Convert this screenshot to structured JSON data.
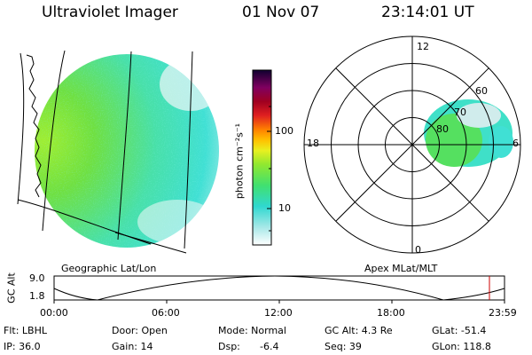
{
  "header": {
    "instrument": "Ultraviolet Imager",
    "date": "01 Nov 07",
    "time": "23:14:01 UT"
  },
  "colorbar": {
    "unit_label": "photon cm⁻²s⁻¹",
    "ticks": [
      "100",
      "10"
    ],
    "scale": "log"
  },
  "geo_panel": {
    "label": "Geographic Lat/Lon"
  },
  "polar_panel": {
    "label": "Apex MLat/MLT",
    "mlt_labels": {
      "top": "12",
      "left": "18",
      "right": "6",
      "bottom": "0"
    },
    "lat_labels": [
      "60",
      "70",
      "80"
    ]
  },
  "altitude_plot": {
    "ylabel": "GC Alt",
    "y_ticks": [
      "9.0",
      "1.8"
    ],
    "x_ticks": [
      "00:00",
      "06:00",
      "12:00",
      "18:00",
      "23:59"
    ],
    "marker_color": "#cc0000"
  },
  "info": {
    "filter": "Flt: LBHL",
    "door": "Door: Open",
    "mode": "Mode: Normal",
    "gc_alt": "GC Alt: 4.3 Re",
    "glat": "GLat: -51.4",
    "ip": "IP: 36.0",
    "gain": "Gain: 14",
    "dsp_label": "Dsp:",
    "dsp_value": "-6.4",
    "seq": "Seq: 39",
    "glon": "GLon: 118.8"
  },
  "colors": {
    "green": "#62e03a",
    "cyan": "#3fe3d0",
    "lime": "#a8ee30",
    "pale": "#d8f0ee"
  }
}
